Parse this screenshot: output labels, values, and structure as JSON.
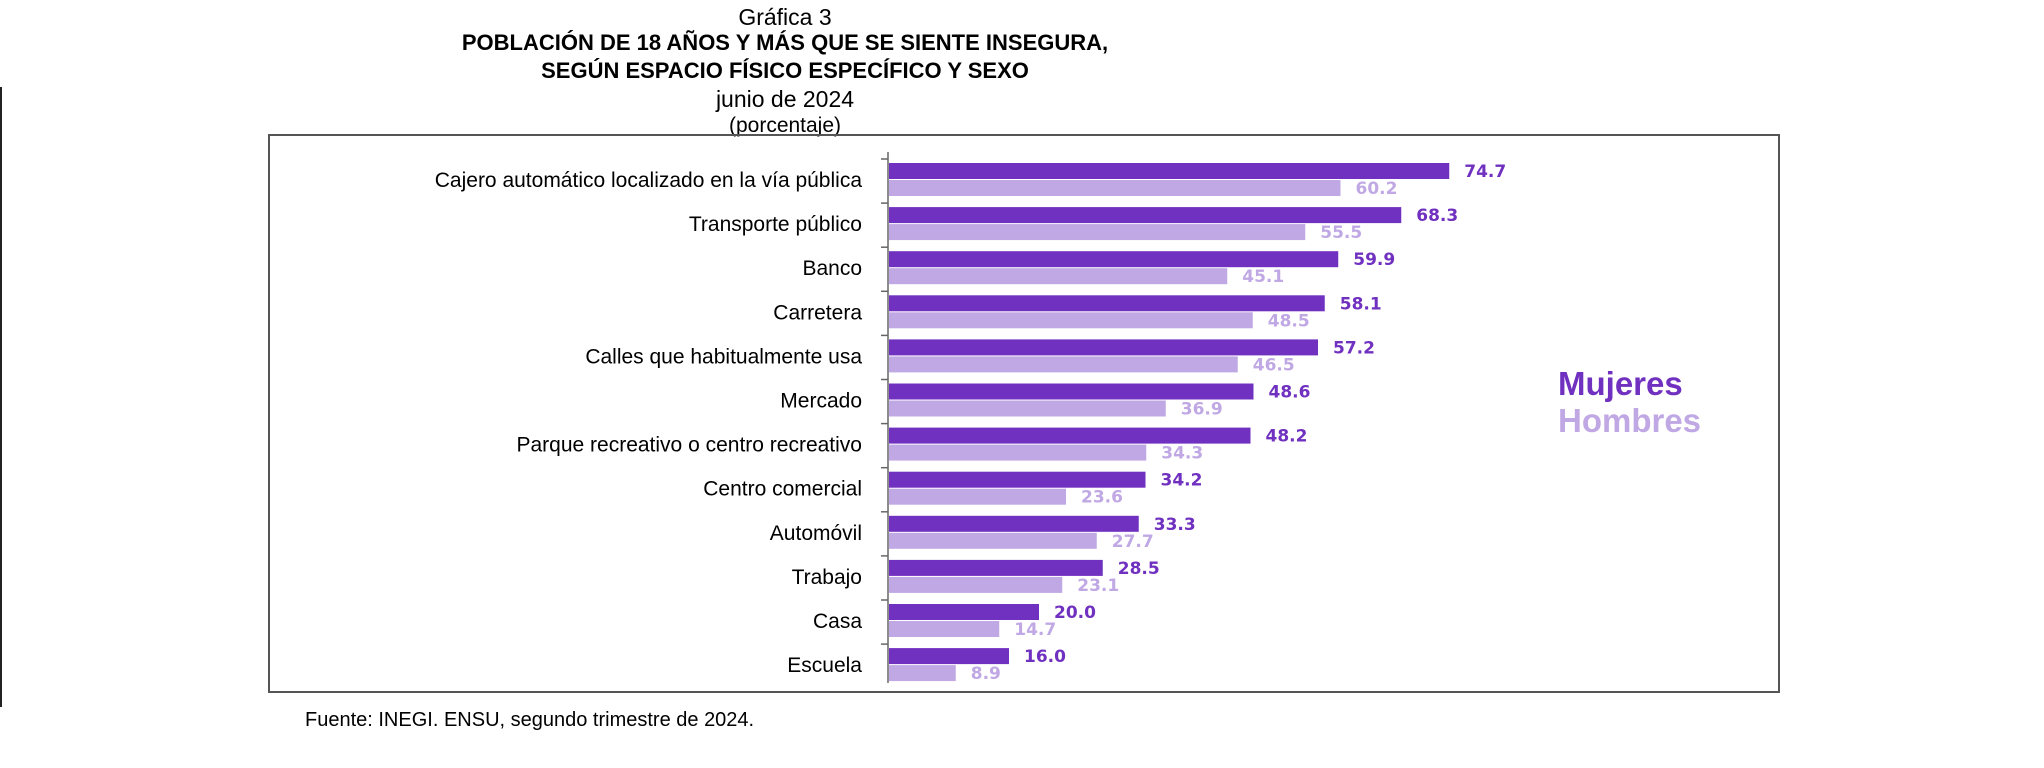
{
  "header": {
    "label": "Gráfica 3",
    "title_line1": "POBLACIÓN DE 18 AÑOS Y MÁS QUE SE SIENTE INSEGURA,",
    "title_line2": "SEGÚN ESPACIO FÍSICO ESPECÍFICO Y SEXO",
    "date": "junio de 2024",
    "unit": "(porcentaje)"
  },
  "legend": {
    "women": "Mujeres",
    "men": "Hombres"
  },
  "source": "Fuente: INEGI. ENSU, segundo trimestre de 2024.",
  "colors": {
    "women": "#7030c0",
    "men": "#c0a8e4"
  },
  "chart_data": {
    "type": "bar",
    "orientation": "horizontal",
    "title": "POBLACIÓN DE 18 AÑOS Y MÁS QUE SE SIENTE INSEGURA, SEGÚN ESPACIO FÍSICO ESPECÍFICO Y SEXO",
    "subtitle": "junio de 2024 (porcentaje)",
    "categories": [
      "Cajero automático localizado en la vía pública",
      "Transporte público",
      "Banco",
      "Carretera",
      "Calles que habitualmente usa",
      "Mercado",
      "Parque recreativo o centro recreativo",
      "Centro comercial",
      "Automóvil",
      "Trabajo",
      "Casa",
      "Escuela"
    ],
    "series": [
      {
        "name": "Mujeres",
        "values": [
          74.7,
          68.3,
          59.9,
          58.1,
          57.2,
          48.6,
          48.2,
          34.2,
          33.3,
          28.5,
          20.0,
          16.0
        ],
        "labels": [
          "74.7",
          "68.3",
          "59.9",
          "58.1",
          "57.2",
          "48.6",
          "48.2",
          "34.2",
          "33.3",
          "28.5",
          "20.0",
          "16.0"
        ]
      },
      {
        "name": "Hombres",
        "values": [
          60.2,
          55.5,
          45.1,
          48.5,
          46.5,
          36.9,
          34.3,
          23.6,
          27.7,
          23.1,
          14.7,
          8.9
        ],
        "labels": [
          "60.2",
          "55.5",
          "45.1",
          "48.5",
          "46.5",
          "36.9",
          "34.3",
          "23.6",
          "27.7",
          "23.1",
          "14.7",
          "8.9"
        ]
      }
    ],
    "xlim": [
      0,
      100
    ],
    "grid": false,
    "axis_labels_shown": false,
    "legend_position": "right"
  }
}
